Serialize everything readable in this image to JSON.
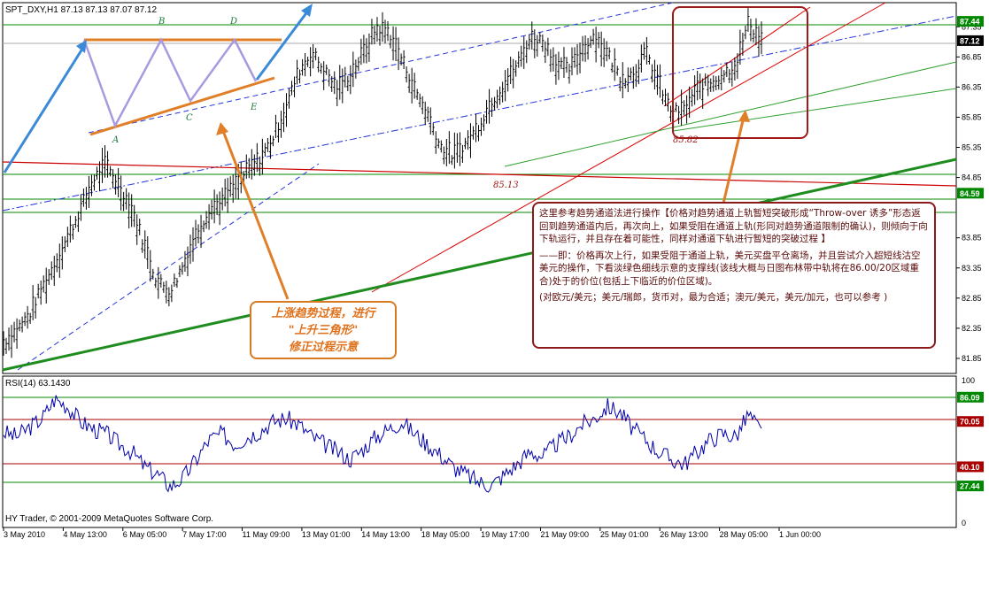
{
  "header": {
    "symbol_line": "SPT_DXY,H1  87.13 87.13 87.07 87.12",
    "rsi_label": "RSI(14) 63.1430",
    "copyright": "HY Trader, © 2001-2009 MetaQuotes Software Corp."
  },
  "chart_data": [
    {
      "type": "line",
      "series_style": "candlestick-like bars",
      "ylim": [
        81.6,
        87.75
      ],
      "price_ticks": [
        "87.35",
        "86.85",
        "86.35",
        "85.85",
        "85.35",
        "84.85",
        "83.85",
        "83.35",
        "82.85",
        "82.35",
        "81.85"
      ],
      "current_price_label": "87.12",
      "level_labels": [
        "87.44",
        "84.59"
      ],
      "point_labels": [
        "85.13",
        "85.82"
      ],
      "pattern_labels": [
        "A",
        "B",
        "C",
        "D",
        "E"
      ],
      "x_ticks": [
        "3 May 2010",
        "4 May 13:00",
        "6 May 05:00",
        "7 May 17:00",
        "11 May 09:00",
        "13 May 01:00",
        "14 May 13:00",
        "18 May 05:00",
        "19 May 17:00",
        "21 May 09:00",
        "25 May 01:00",
        "26 May 13:00",
        "28 May 05:00",
        "1 Jun 00:00"
      ],
      "price_path": [
        82.1,
        82.3,
        82.55,
        83.0,
        83.4,
        83.85,
        84.3,
        84.8,
        85.05,
        84.7,
        84.3,
        83.7,
        83.1,
        82.95,
        83.4,
        83.9,
        84.3,
        84.45,
        84.7,
        84.95,
        85.15,
        85.5,
        86.0,
        86.6,
        86.9,
        86.6,
        86.3,
        86.55,
        86.9,
        87.3,
        87.25,
        86.8,
        86.3,
        85.9,
        85.35,
        85.2,
        85.4,
        85.7,
        86.1,
        86.4,
        86.7,
        87.15,
        87.1,
        86.75,
        86.6,
        86.95,
        87.2,
        86.9,
        86.5,
        86.55,
        86.9,
        86.4,
        85.9,
        85.95,
        86.3,
        86.4,
        86.55,
        86.7,
        87.4,
        87.12
      ]
    },
    {
      "type": "line",
      "title": "RSI(14) 63.1430",
      "ylim": [
        0,
        100
      ],
      "levels": [
        "86.09",
        "70.05",
        "40.10",
        "27.44"
      ],
      "axis_top_label": "100",
      "axis_bottom_label": "0",
      "rsi_path": [
        63,
        60,
        66,
        72,
        85,
        80,
        70,
        65,
        62,
        55,
        50,
        40,
        35,
        27,
        33,
        45,
        58,
        62,
        55,
        60,
        64,
        70,
        72,
        68,
        60,
        55,
        50,
        45,
        52,
        60,
        65,
        70,
        62,
        55,
        48,
        40,
        35,
        30,
        28,
        35,
        42,
        50,
        47,
        55,
        60,
        68,
        72,
        80,
        76,
        65,
        58,
        50,
        45,
        42,
        50,
        58,
        62,
        60,
        75,
        63
      ]
    }
  ],
  "annotations": {
    "orange_box": {
      "line1": "上涨趋势过程，进行",
      "line2": "\"上升三角形\"",
      "line3": "修正过程示意"
    },
    "red_box": {
      "p1": "这里参考趋势通道法进行操作【价格对趋势通道上轨暂短突破形成“Throw-over 诱多”形态返回到趋势通道内后，再次向上，如果受阻在通道上轨(形同对趋势通道限制的确认)，则倾向于向下轨运行，并且存在着可能性，同样对通道下轨进行暂短的突破过程 】",
      "p2": "——即：价格再次上行，如果受阻于通道上轨，美元买盘平仓离场，并且尝试介入超短线沽空美元的操作，下看淡绿色细线示意的支撑线(该线大概与日图布林带中轨将在86.00/20区域重合)处于的价位(包括上下临近的价位区域)。",
      "p3": "(对欧元/美元；美元/瑞郎，货币对，最为合适；澳元/美元，美元/加元，也可以参考 )"
    }
  },
  "colors": {
    "bars": "#000000",
    "rsi_line": "#0000aa",
    "blue_arrow": "#3a8ad8",
    "orange": "#e07f28",
    "lavender": "#a99ae0",
    "dark_green": "#1e8c1e",
    "light_green": "#2fa02f",
    "red": "#d40000",
    "dark_red": "#8b1a1a",
    "channel_dash": "#2233dd",
    "level_green": "#008800"
  }
}
